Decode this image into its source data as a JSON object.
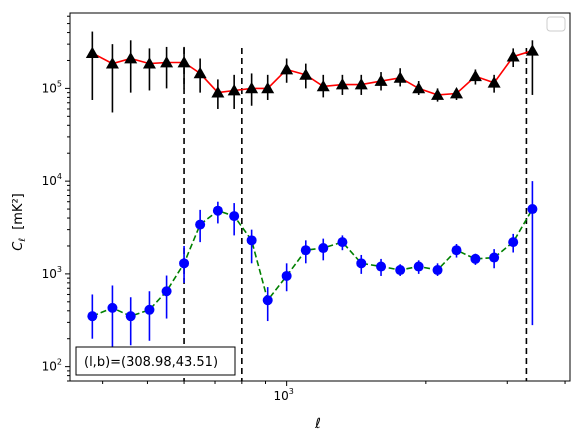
{
  "chart_data": {
    "type": "scatter",
    "title": "",
    "xlabel": "ℓ",
    "ylabel_main": "C",
    "ylabel_sub": "ℓ",
    "ylabel_unit": "[mK²]",
    "x_scale": "log",
    "y_scale": "log",
    "xlim": [
      340,
      4100
    ],
    "ylim": [
      70,
      650000
    ],
    "grid": false,
    "legend": "top-right (empty)",
    "x_ticks": [
      {
        "value": 1000,
        "label_base": "10",
        "label_exp": "3"
      }
    ],
    "y_ticks": [
      {
        "value": 100,
        "label_base": "10",
        "label_exp": "2"
      },
      {
        "value": 1000,
        "label_base": "10",
        "label_exp": "3"
      },
      {
        "value": 10000,
        "label_base": "10",
        "label_exp": "4"
      },
      {
        "value": 100000,
        "label_base": "10",
        "label_exp": "5"
      }
    ],
    "vlines": [
      600,
      800,
      3300
    ],
    "annotation": "(l,b)=(308.98,43.51)",
    "series": [
      {
        "color": "#000000",
        "marker": "triangle",
        "line_color": "#ff0000",
        "line_style": "solid",
        "errorbar_color": "#000000",
        "x": [
          380,
          420,
          460,
          505,
          550,
          600,
          650,
          710,
          770,
          840,
          910,
          1000,
          1100,
          1200,
          1320,
          1450,
          1600,
          1760,
          1930,
          2120,
          2330,
          2560,
          2810,
          3090,
          3400,
          3750,
          4000
        ],
        "y": [
          240000,
          185000,
          210000,
          185000,
          190000,
          190000,
          145000,
          90000,
          95000,
          100000,
          100000,
          160000,
          140000,
          105000,
          110000,
          110000,
          120000,
          130000,
          100000,
          85000,
          88000,
          135000,
          115000,
          220000,
          255000,
          0,
          0
        ],
        "y_low": [
          75000,
          55000,
          90000,
          95000,
          100000,
          100000,
          90000,
          60000,
          60000,
          65000,
          75000,
          115000,
          100000,
          80000,
          85000,
          85000,
          95000,
          105000,
          85000,
          72000,
          75000,
          110000,
          90000,
          170000,
          85000,
          0,
          0
        ],
        "y_high": [
          410000,
          300000,
          330000,
          270000,
          280000,
          280000,
          210000,
          125000,
          140000,
          145000,
          140000,
          210000,
          185000,
          140000,
          140000,
          140000,
          150000,
          165000,
          120000,
          100000,
          100000,
          160000,
          140000,
          270000,
          330000,
          0,
          0
        ]
      },
      {
        "color": "#0000ff",
        "marker": "circle",
        "line_color": "#008000",
        "line_style": "dashed",
        "errorbar_color": "#0000ff",
        "x": [
          380,
          420,
          460,
          505,
          550,
          600,
          650,
          710,
          770,
          840,
          910,
          1000,
          1100,
          1200,
          1320,
          1450,
          1600,
          1760,
          1930,
          2120,
          2330,
          2560,
          2810,
          3090,
          3400,
          3750,
          4000
        ],
        "y": [
          350,
          430,
          350,
          410,
          650,
          1300,
          3400,
          4800,
          4200,
          2300,
          520,
          950,
          1800,
          1900,
          2200,
          1300,
          1200,
          1100,
          1200,
          1100,
          1800,
          1450,
          1500,
          2200,
          5000,
          0,
          0
        ],
        "y_low": [
          200,
          120,
          170,
          190,
          330,
          800,
          2200,
          3500,
          2600,
          1300,
          310,
          650,
          1300,
          1400,
          1800,
          1000,
          950,
          950,
          1000,
          950,
          1500,
          1250,
          1150,
          1700,
          280,
          0,
          0
        ],
        "y_high": [
          600,
          750,
          560,
          650,
          960,
          2000,
          4900,
          6000,
          5800,
          3000,
          720,
          1300,
          2300,
          2400,
          2600,
          1600,
          1450,
          1270,
          1400,
          1300,
          2100,
          1650,
          1850,
          2700,
          10000,
          0,
          0
        ]
      }
    ]
  }
}
